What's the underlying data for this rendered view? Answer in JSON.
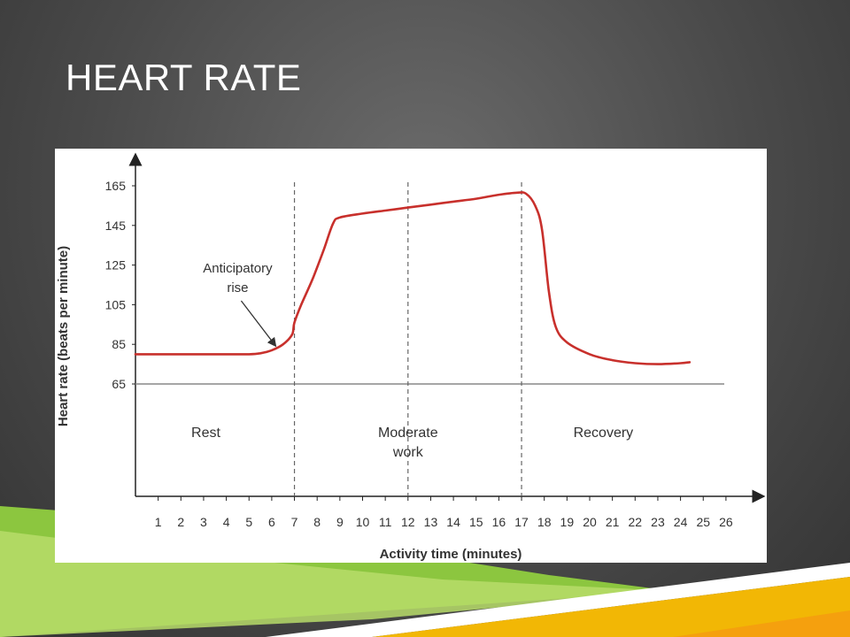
{
  "slide": {
    "title": "HEART RATE"
  },
  "colors": {
    "curve": "#c8302c",
    "axis": "#333333",
    "bottom_green": "#8cc63f",
    "bottom_yellow": "#f2b705"
  },
  "chart_data": {
    "type": "line",
    "title": "",
    "xlabel": "Activity time (minutes)",
    "ylabel": "Heart rate (beats per minute)",
    "xlim": [
      0,
      27
    ],
    "ylim": [
      45,
      172
    ],
    "x_ticks": [
      1,
      2,
      3,
      4,
      5,
      6,
      7,
      8,
      9,
      10,
      11,
      12,
      13,
      14,
      15,
      16,
      17,
      18,
      19,
      20,
      21,
      22,
      23,
      24,
      25,
      26
    ],
    "y_ticks": [
      65,
      85,
      105,
      125,
      145,
      165
    ],
    "baseline": 65,
    "phase_lines": [
      7,
      12,
      17
    ],
    "phases": [
      {
        "label_lines": [
          "Rest"
        ],
        "x": 3.1
      },
      {
        "label_lines": [
          "Moderate",
          "work"
        ],
        "x": 12.0
      },
      {
        "label_lines": [
          "Recovery"
        ],
        "x": 20.6
      }
    ],
    "annotation": {
      "label_lines": [
        "Anticipatory",
        "rise"
      ],
      "text_x": 4.5,
      "text_y": 117,
      "arrow_x": 6.1,
      "arrow_y": 85
    },
    "series": [
      {
        "x": [
          0.0,
          1,
          2,
          3,
          4,
          5,
          5.5,
          6.0,
          6.5,
          6.9,
          7.0,
          7.3,
          7.8,
          8.3,
          8.7,
          9.0,
          10,
          11,
          12,
          13,
          14,
          15,
          16,
          16.8,
          17.2,
          17.6,
          17.9,
          18.2,
          18.5,
          19,
          20,
          21,
          22,
          23,
          24,
          24.4
        ],
        "values": [
          80,
          80,
          80,
          80,
          80,
          80,
          80.5,
          82,
          85,
          90,
          96,
          105,
          118,
          133,
          146,
          149,
          151,
          152.5,
          154,
          155.5,
          157,
          158.5,
          160.5,
          161.5,
          161,
          155,
          143,
          112,
          94,
          86,
          80,
          77,
          75.5,
          75,
          75.5,
          76
        ]
      }
    ]
  }
}
